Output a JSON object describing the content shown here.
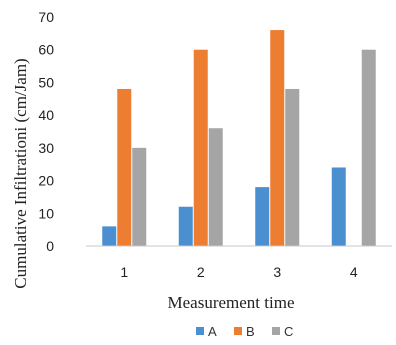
{
  "chart_data": {
    "type": "bar",
    "categories": [
      "1",
      "2",
      "3",
      "4"
    ],
    "series": [
      {
        "name": "A",
        "values": [
          6,
          12,
          18,
          24
        ],
        "color": "#4a8fd0"
      },
      {
        "name": "B",
        "values": [
          48,
          60,
          66,
          null
        ],
        "color": "#ed7d31"
      },
      {
        "name": "C",
        "values": [
          30,
          36,
          48,
          60
        ],
        "color": "#a5a5a5"
      }
    ],
    "xlabel": "Measurement time",
    "ylabel": "Cumulative Infiltrationi (cm/Jam)",
    "ylim": [
      0,
      70
    ],
    "yticks": [
      "0",
      "10",
      "20",
      "30",
      "40",
      "50",
      "60",
      "70"
    ],
    "grid": false,
    "legend": "bottom"
  }
}
